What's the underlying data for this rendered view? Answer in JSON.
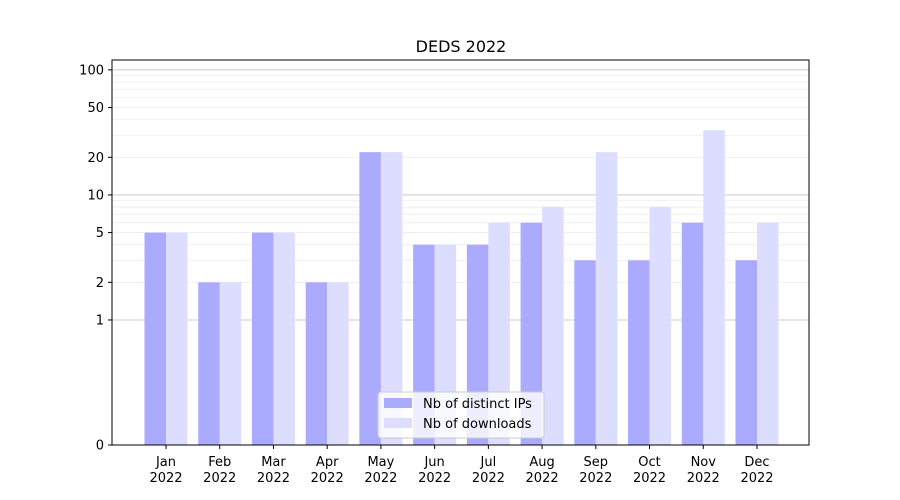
{
  "chart_data": {
    "type": "bar",
    "title": "DEDS 2022",
    "xlabel": "",
    "ylabel": "",
    "yscale": "symlog",
    "ylim": [
      0,
      120
    ],
    "yticks": [
      "0",
      "1",
      "2",
      "5",
      "10",
      "20",
      "50",
      "100"
    ],
    "grid": true,
    "legend_position": "bottom-center",
    "categories": [
      [
        "Jan",
        "2022"
      ],
      [
        "Feb",
        "2022"
      ],
      [
        "Mar",
        "2022"
      ],
      [
        "Apr",
        "2022"
      ],
      [
        "May",
        "2022"
      ],
      [
        "Jun",
        "2022"
      ],
      [
        "Jul",
        "2022"
      ],
      [
        "Aug",
        "2022"
      ],
      [
        "Sep",
        "2022"
      ],
      [
        "Oct",
        "2022"
      ],
      [
        "Nov",
        "2022"
      ],
      [
        "Dec",
        "2022"
      ]
    ],
    "series": [
      {
        "name": "Nb of distinct IPs",
        "color": "#aaaaff",
        "values": [
          5,
          2,
          5,
          2,
          22,
          4,
          4,
          6,
          3,
          3,
          6,
          3
        ]
      },
      {
        "name": "Nb of downloads",
        "color": "#ddddff",
        "values": [
          5,
          2,
          5,
          2,
          22,
          4,
          6,
          8,
          22,
          8,
          33,
          6
        ]
      }
    ]
  }
}
